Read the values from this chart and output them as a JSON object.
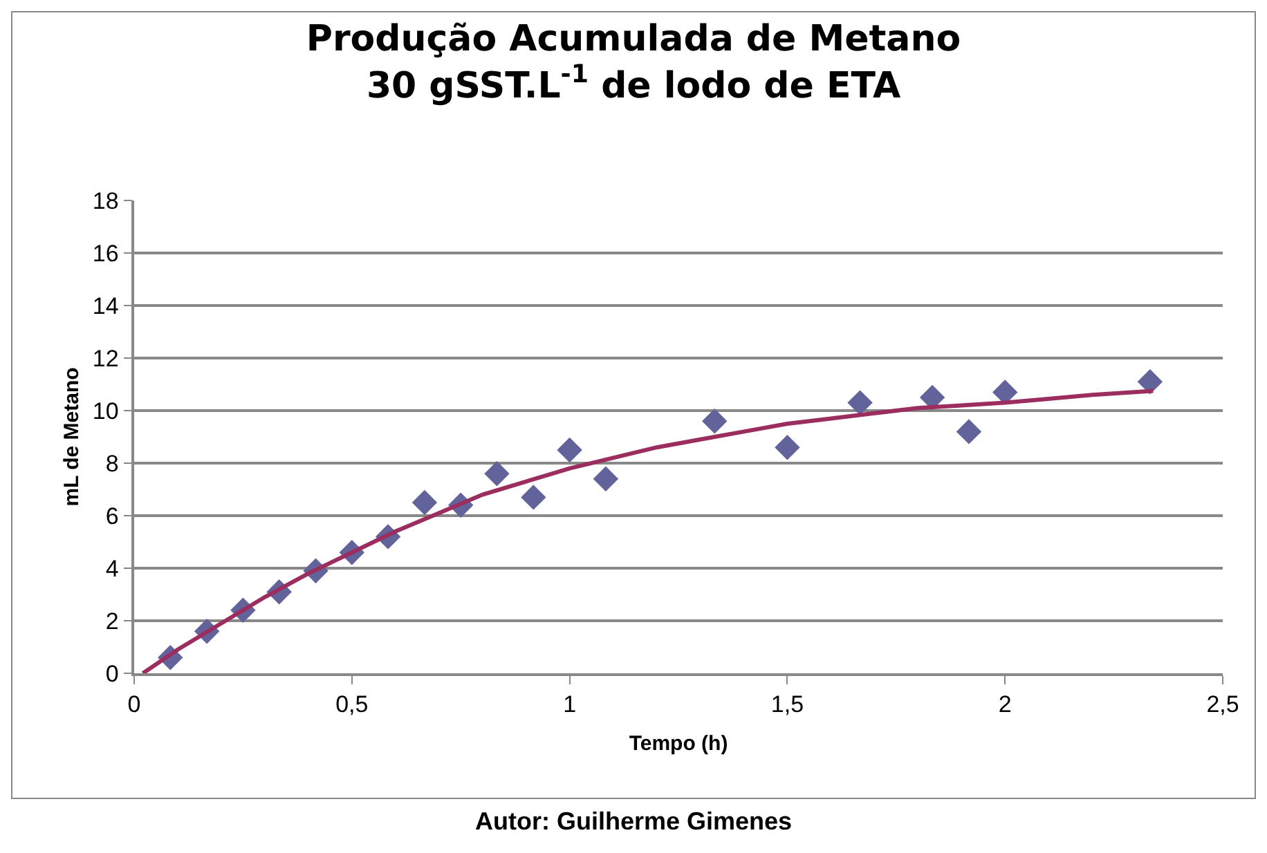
{
  "chart_data": {
    "type": "scatter",
    "title": "Produção Acumulada de Metano\n30 gSST.L$^{-1}$ de lodo de ETA",
    "xlabel": "Tempo (h)",
    "ylabel": "mL de Metano",
    "annotations": [
      "Autor: Guilherme Gimenes"
    ],
    "xlim": [
      0,
      2.5
    ],
    "xticks": [
      0,
      {
        "value": 0.5,
        "label": "0,5"
      },
      1,
      {
        "value": 1.5,
        "label": "1,5"
      },
      2,
      {
        "value": 2.5,
        "label": "2,5"
      }
    ],
    "ylim": [
      0,
      18
    ],
    "yticks": [
      0,
      2,
      4,
      6,
      8,
      10,
      12,
      14,
      16,
      18
    ],
    "grid": "y",
    "series": [
      {
        "marker": "diamond",
        "color": "#63639b",
        "x": [
          0.083,
          0.167,
          0.25,
          0.333,
          0.417,
          0.5,
          0.583,
          0.667,
          0.75,
          0.833,
          0.917,
          1.0,
          1.083,
          1.333,
          1.5,
          1.667,
          1.833,
          1.917,
          2.0,
          2.333
        ],
        "values": [
          0.6,
          1.6,
          2.4,
          3.1,
          3.9,
          4.6,
          5.2,
          6.5,
          6.4,
          7.6,
          6.7,
          8.5,
          7.4,
          9.6,
          8.6,
          10.3,
          10.5,
          9.2,
          10.7,
          11.1
        ]
      },
      {
        "type": "line",
        "marker": "none",
        "line_style": "solid",
        "color": "#9b2d5f",
        "x": [
          0.02,
          0.1,
          0.2,
          0.3,
          0.4,
          0.5,
          0.6,
          0.7,
          0.8,
          0.9,
          1.0,
          1.1,
          1.2,
          1.3,
          1.4,
          1.5,
          1.6,
          1.7,
          1.8,
          1.9,
          2.0,
          2.1,
          2.2,
          2.34
        ],
        "values": [
          0,
          0.9,
          1.9,
          2.9,
          3.8,
          4.6,
          5.4,
          6.1,
          6.8,
          7.3,
          7.8,
          8.2,
          8.6,
          8.9,
          9.2,
          9.5,
          9.7,
          9.9,
          10.1,
          10.2,
          10.3,
          10.45,
          10.6,
          10.75
        ]
      }
    ]
  }
}
